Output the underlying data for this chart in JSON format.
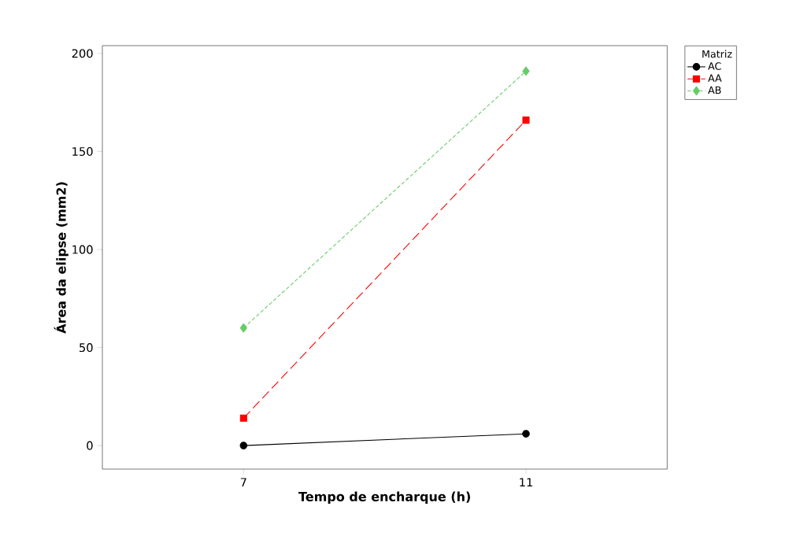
{
  "chart_data": {
    "type": "line",
    "xlabel": "Tempo de encharque (h)",
    "ylabel": "Área da elipse (mm2)",
    "x": [
      7,
      11
    ],
    "xlim": [
      5,
      13
    ],
    "xticks": [
      7,
      11
    ],
    "ylim": [
      -12,
      204
    ],
    "yticks": [
      0,
      50,
      100,
      150,
      200
    ],
    "legend": "right",
    "legend_title": "Matriz",
    "grid": false,
    "series": [
      {
        "name": "AC",
        "color": "#000000",
        "values": [
          0,
          6
        ],
        "marker": "circle",
        "line_style": "solid"
      },
      {
        "name": "AA",
        "color": "#ff0000",
        "values": [
          14,
          166
        ],
        "marker": "square",
        "line_style": "dashed"
      },
      {
        "name": "AB",
        "color": "#66cc66",
        "values": [
          60,
          191
        ],
        "marker": "diamond",
        "line_style": "dotted"
      }
    ]
  }
}
